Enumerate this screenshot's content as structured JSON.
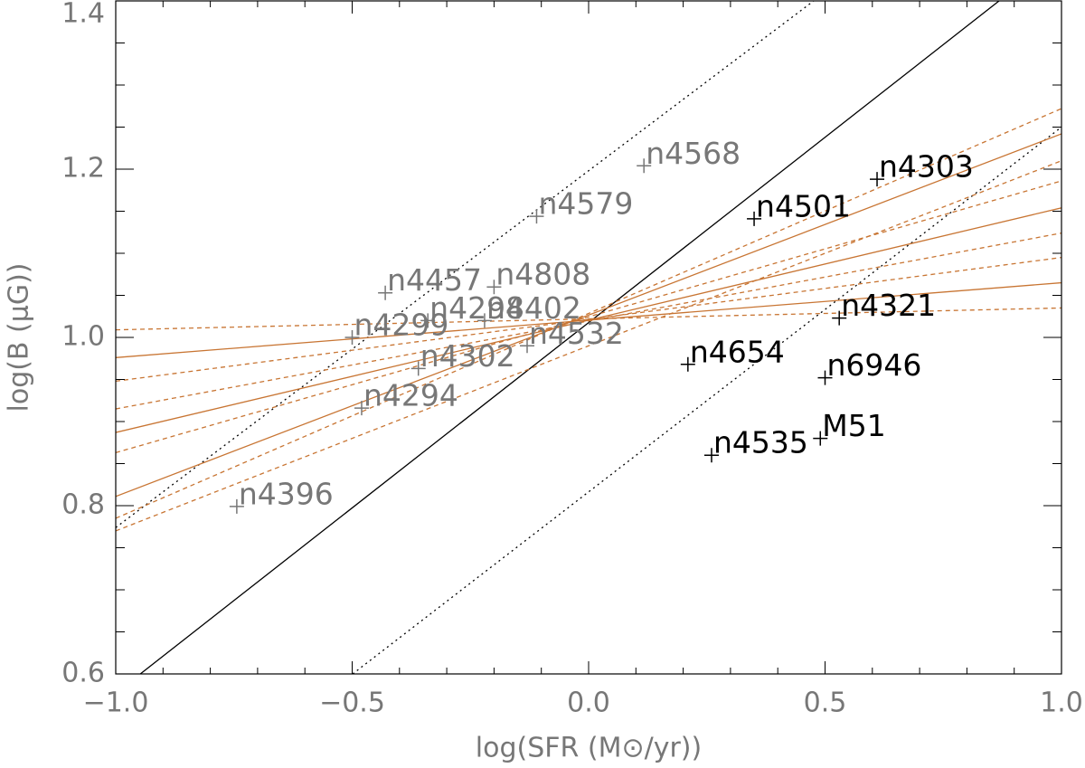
{
  "chart_data": {
    "type": "scatter",
    "xlabel": "log(SFR (M⊙/yr))",
    "ylabel": "log(B (μG))",
    "xlim": [
      -1.0,
      1.0
    ],
    "ylim": [
      0.6,
      1.4
    ],
    "xticks": [
      {
        "value": -1.0,
        "label": "−1.0"
      },
      {
        "value": -0.5,
        "label": "−0.5"
      },
      {
        "value": 0.0,
        "label": "0.0"
      },
      {
        "value": 0.5,
        "label": "0.5"
      },
      {
        "value": 1.0,
        "label": "1.0"
      }
    ],
    "yticks": [
      {
        "value": 0.6,
        "label": "0.6"
      },
      {
        "value": 0.8,
        "label": "0.8"
      },
      {
        "value": 1.0,
        "label": "1.0"
      },
      {
        "value": 1.2,
        "label": "1.2"
      },
      {
        "value": 1.4,
        "label": "1.4"
      }
    ],
    "xminorticks": [
      -0.9,
      -0.8,
      -0.7,
      -0.6,
      -0.4,
      -0.3,
      -0.2,
      -0.1,
      0.1,
      0.2,
      0.3,
      0.4,
      0.6,
      0.7,
      0.8,
      0.9
    ],
    "yminorticks": [
      0.65,
      0.7,
      0.75,
      0.85,
      0.9,
      0.95,
      1.05,
      1.1,
      1.15,
      1.25,
      1.3,
      1.35
    ],
    "groups": [
      {
        "color": "#777777",
        "points": [
          {
            "label": "n4396",
            "x": -0.744,
            "y": 0.799
          },
          {
            "label": "n4294",
            "x": -0.48,
            "y": 0.916
          },
          {
            "label": "n4302",
            "x": -0.36,
            "y": 0.963
          },
          {
            "label": "n4299",
            "x": -0.5,
            "y": 1.0
          },
          {
            "label": "n4457",
            "x": -0.43,
            "y": 1.053
          },
          {
            "label": "n4298",
            "x": -0.34,
            "y": 1.02
          },
          {
            "label": "n4402",
            "x": -0.22,
            "y": 1.02
          },
          {
            "label": "n4808",
            "x": -0.2,
            "y": 1.06
          },
          {
            "label": "n4532",
            "x": -0.13,
            "y": 0.99
          },
          {
            "label": "n4579",
            "x": -0.11,
            "y": 1.144
          },
          {
            "label": "n4568",
            "x": 0.117,
            "y": 1.204
          }
        ]
      },
      {
        "color": "#000000",
        "points": [
          {
            "label": "n4501",
            "x": 0.35,
            "y": 1.141
          },
          {
            "label": "n4303",
            "x": 0.61,
            "y": 1.188
          },
          {
            "label": "n4321",
            "x": 0.53,
            "y": 1.023
          },
          {
            "label": "n4654",
            "x": 0.21,
            "y": 0.968
          },
          {
            "label": "n6946",
            "x": 0.5,
            "y": 0.952
          },
          {
            "label": "n4535",
            "x": 0.26,
            "y": 0.86
          },
          {
            "label": "M51",
            "x": 0.49,
            "y": 0.88
          }
        ]
      }
    ],
    "lines": [
      {
        "color": "#000000",
        "style": "solid",
        "x": [
          -0.948,
          0.868
        ],
        "y": [
          0.6,
          1.4
        ]
      },
      {
        "color": "#000000",
        "style": "dotted",
        "x": [
          -0.499,
          1.0
        ],
        "y": [
          0.6,
          1.25
        ]
      },
      {
        "color": "#000000",
        "style": "dotted",
        "x": [
          -1.0,
          0.476
        ],
        "y": [
          0.774,
          1.4
        ]
      },
      {
        "color": "#c87533",
        "style": "solid",
        "x": [
          -1.0,
          1.0
        ],
        "y": [
          0.976,
          1.065
        ]
      },
      {
        "color": "#c87533",
        "style": "solid",
        "x": [
          -1.0,
          1.0
        ],
        "y": [
          0.887,
          1.154
        ]
      },
      {
        "color": "#c87533",
        "style": "solid",
        "x": [
          -1.0,
          1.0
        ],
        "y": [
          0.811,
          1.242
        ]
      },
      {
        "color": "#c87533",
        "style": "dashed",
        "x": [
          -1.0,
          1.0
        ],
        "y": [
          1.009,
          1.035
        ]
      },
      {
        "color": "#c87533",
        "style": "dashed",
        "x": [
          -1.0,
          1.0
        ],
        "y": [
          0.948,
          1.095
        ]
      },
      {
        "color": "#c87533",
        "style": "dashed",
        "x": [
          -1.0,
          1.0
        ],
        "y": [
          0.915,
          1.124
        ]
      },
      {
        "color": "#c87533",
        "style": "dashed",
        "x": [
          -1.0,
          1.0
        ],
        "y": [
          0.863,
          1.186
        ]
      },
      {
        "color": "#c87533",
        "style": "dashed",
        "x": [
          -1.0,
          1.0
        ],
        "y": [
          0.785,
          1.272
        ]
      },
      {
        "color": "#c87533",
        "style": "dashed",
        "x": [
          -1.0,
          1.0
        ],
        "y": [
          0.77,
          1.21
        ]
      }
    ]
  }
}
